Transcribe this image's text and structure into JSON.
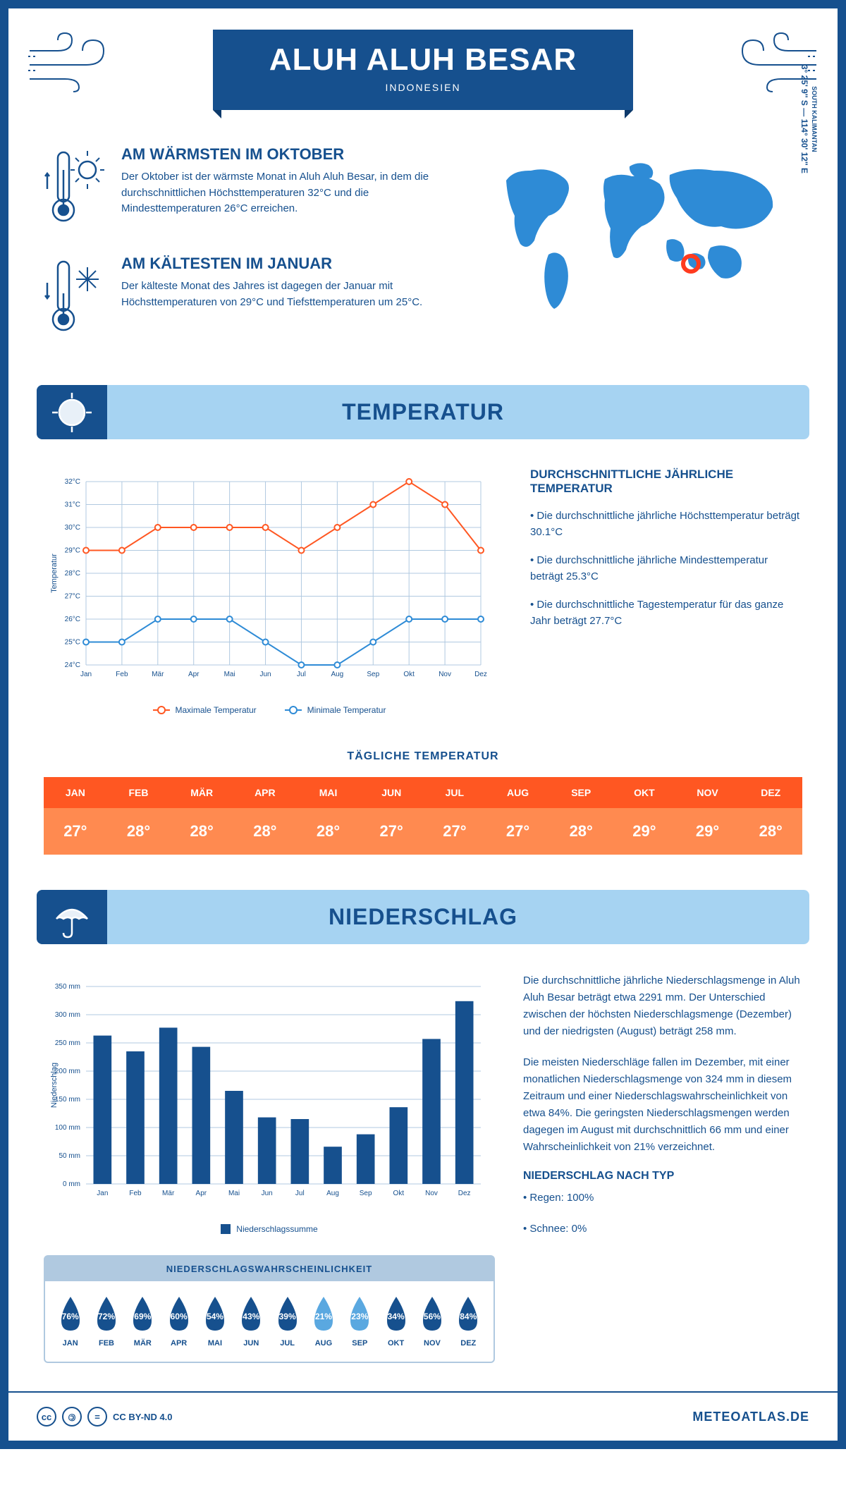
{
  "header": {
    "title": "ALUH ALUH BESAR",
    "subtitle": "INDONESIEN"
  },
  "coords": {
    "region": "SOUTH KALIMANTAN",
    "lat": "3° 25' 9'' S",
    "lon": "114° 30' 12'' E"
  },
  "facts": {
    "warm": {
      "title": "AM WÄRMSTEN IM OKTOBER",
      "text": "Der Oktober ist der wärmste Monat in Aluh Aluh Besar, in dem die durchschnittlichen Höchsttemperaturen 32°C und die Mindesttemperaturen 26°C erreichen."
    },
    "cold": {
      "title": "AM KÄLTESTEN IM JANUAR",
      "text": "Der kälteste Monat des Jahres ist dagegen der Januar mit Höchsttemperaturen von 29°C und Tiefsttemperaturen um 25°C."
    }
  },
  "temperature": {
    "section_title": "TEMPERATUR",
    "months": [
      "Jan",
      "Feb",
      "Mär",
      "Apr",
      "Mai",
      "Jun",
      "Jul",
      "Aug",
      "Sep",
      "Okt",
      "Nov",
      "Dez"
    ],
    "max_values": [
      29,
      29,
      30,
      30,
      30,
      30,
      29,
      30,
      31,
      32,
      31,
      29
    ],
    "min_values": [
      25,
      25,
      26,
      26,
      26,
      25,
      24,
      24,
      25,
      26,
      26,
      26
    ],
    "ylim": [
      24,
      32
    ],
    "ytick_step": 1,
    "max_color": "#ff5722",
    "min_color": "#2e8bd6",
    "grid_color": "#b0c9e0",
    "background_color": "#ffffff",
    "marker_style": "circle",
    "marker_fill": "#ffffff",
    "line_width": 2,
    "ylabel": "Temperatur",
    "legend_max": "Maximale Temperatur",
    "legend_min": "Minimale Temperatur",
    "info_title": "DURCHSCHNITTLICHE JÄHRLICHE TEMPERATUR",
    "info_points": [
      "• Die durchschnittliche jährliche Höchsttemperatur beträgt 30.1°C",
      "• Die durchschnittliche jährliche Mindesttemperatur beträgt 25.3°C",
      "• Die durchschnittliche Tagestemperatur für das ganze Jahr beträgt 27.7°C"
    ]
  },
  "daily": {
    "title": "TÄGLICHE TEMPERATUR",
    "months": [
      "JAN",
      "FEB",
      "MÄR",
      "APR",
      "MAI",
      "JUN",
      "JUL",
      "AUG",
      "SEP",
      "OKT",
      "NOV",
      "DEZ"
    ],
    "values": [
      "27°",
      "28°",
      "28°",
      "28°",
      "28°",
      "27°",
      "27°",
      "27°",
      "28°",
      "29°",
      "29°",
      "28°"
    ],
    "header_color": "#ff5722",
    "value_color": "#ff8a50"
  },
  "precipitation": {
    "section_title": "NIEDERSCHLAG",
    "months": [
      "Jan",
      "Feb",
      "Mär",
      "Apr",
      "Mai",
      "Jun",
      "Jul",
      "Aug",
      "Sep",
      "Okt",
      "Nov",
      "Dez"
    ],
    "values": [
      263,
      235,
      277,
      243,
      165,
      118,
      115,
      66,
      88,
      136,
      257,
      324
    ],
    "ylim": [
      0,
      350
    ],
    "ytick_step": 50,
    "bar_color": "#16508e",
    "grid_color": "#b0c9e0",
    "bar_width": 0.55,
    "ylabel": "Niederschlag",
    "legend": "Niederschlagssumme",
    "text1": "Die durchschnittliche jährliche Niederschlagsmenge in Aluh Aluh Besar beträgt etwa 2291 mm. Der Unterschied zwischen der höchsten Niederschlagsmenge (Dezember) und der niedrigsten (August) beträgt 258 mm.",
    "text2": "Die meisten Niederschläge fallen im Dezember, mit einer monatlichen Niederschlagsmenge von 324 mm in diesem Zeitraum und einer Niederschlagswahrscheinlichkeit von etwa 84%. Die geringsten Niederschlagsmengen werden dagegen im August mit durchschnittlich 66 mm und einer Wahrscheinlichkeit von 21% verzeichnet.",
    "type_title": "NIEDERSCHLAG NACH TYP",
    "type_rain": "• Regen: 100%",
    "type_snow": "• Schnee: 0%"
  },
  "probability": {
    "title": "NIEDERSCHLAGSWAHRSCHEINLICHKEIT",
    "months": [
      "JAN",
      "FEB",
      "MÄR",
      "APR",
      "MAI",
      "JUN",
      "JUL",
      "AUG",
      "SEP",
      "OKT",
      "NOV",
      "DEZ"
    ],
    "values": [
      76,
      72,
      69,
      60,
      54,
      43,
      39,
      21,
      23,
      34,
      56,
      84
    ],
    "dark_color": "#16508e",
    "light_color": "#5aa8e0",
    "light_threshold": 30
  },
  "footer": {
    "license": "CC BY-ND 4.0",
    "brand": "METEOATLAS.DE"
  }
}
